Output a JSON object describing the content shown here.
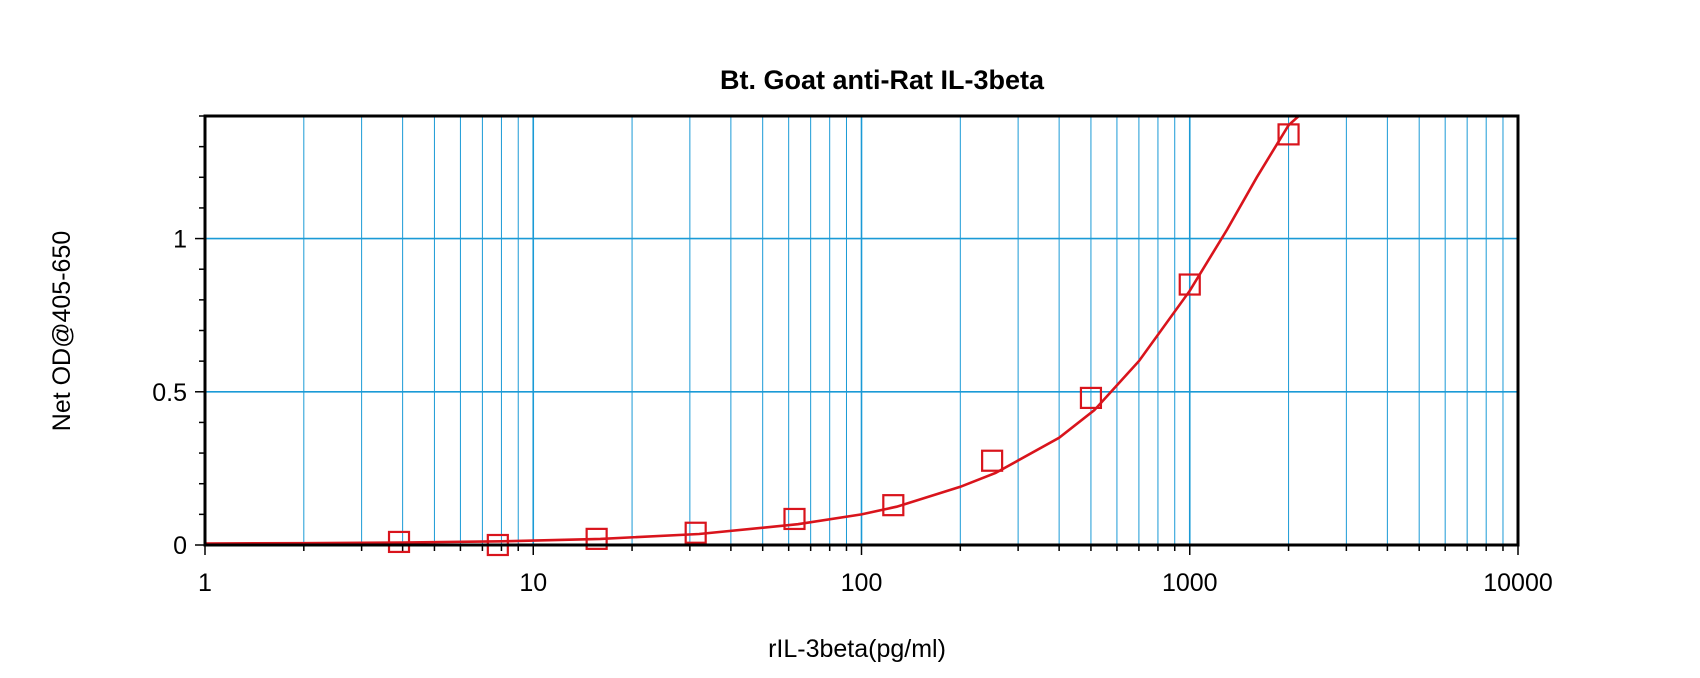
{
  "chart_data": {
    "type": "scatter",
    "title": "Bt. Goat anti-Rat IL-3beta",
    "xlabel": "rIL-3beta(pg/ml)",
    "ylabel": "Net OD@405-650",
    "x_scale": "log",
    "xlim": [
      1,
      10000
    ],
    "ylim": [
      0,
      1.4
    ],
    "x_ticks": [
      1,
      10,
      100,
      1000,
      10000
    ],
    "x_tick_labels": [
      "1",
      "10",
      "100",
      "1000",
      "10000"
    ],
    "y_ticks": [
      0,
      0.5,
      1
    ],
    "y_tick_labels": [
      "0",
      "0.5",
      "1"
    ],
    "grid": true,
    "series": [
      {
        "marker": "square",
        "color": "#d9141c",
        "x": [
          3.9,
          7.8,
          15.6,
          31.25,
          62.5,
          125,
          250,
          500,
          1000,
          2000
        ],
        "y": [
          0.01,
          0.0,
          0.02,
          0.04,
          0.085,
          0.13,
          0.275,
          0.48,
          0.85,
          1.34
        ]
      }
    ],
    "fit_curve": {
      "color": "#d9141c",
      "x": [
        1,
        2,
        4,
        8,
        16,
        32,
        64,
        100,
        128,
        200,
        256,
        400,
        512,
        700,
        1000,
        1300,
        1600,
        2000,
        2200
      ],
      "y": [
        0.005,
        0.006,
        0.008,
        0.012,
        0.02,
        0.036,
        0.068,
        0.1,
        0.125,
        0.19,
        0.235,
        0.35,
        0.44,
        0.6,
        0.83,
        1.03,
        1.2,
        1.37,
        1.41
      ]
    },
    "grid_color": "#1a9ad6"
  }
}
